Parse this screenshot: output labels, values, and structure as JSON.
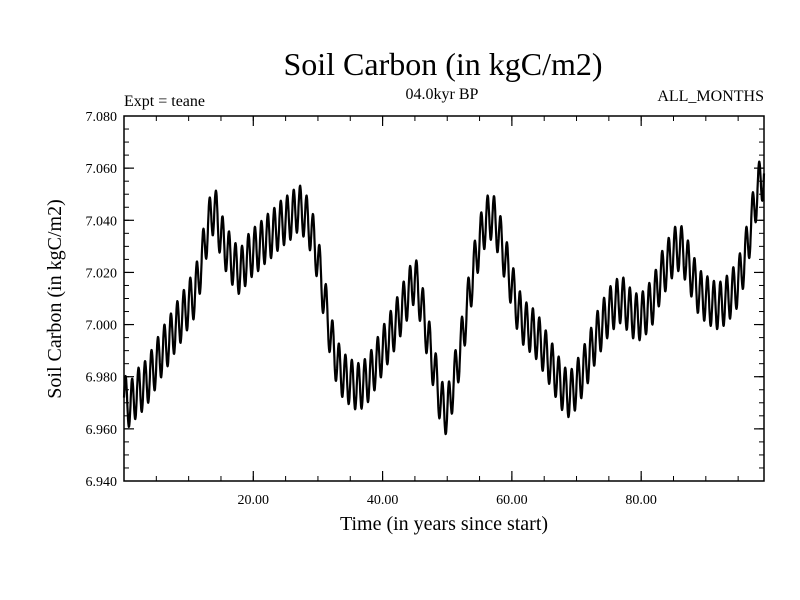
{
  "chart_data": {
    "type": "line",
    "title": "Soil Carbon (in kgC/m2)",
    "subtitle": "04.0kyr BP",
    "experiment_label": "Expt = teane",
    "months_label": "ALL_MONTHS",
    "xlabel": "Time (in years since start)",
    "ylabel": "Soil Carbon (in kgC/m2)",
    "xlim": [
      0,
      99
    ],
    "ylim": [
      6.94,
      7.08
    ],
    "x_ticks": [
      20,
      40,
      60,
      80
    ],
    "x_tick_labels": [
      "20.00",
      "40.00",
      "60.00",
      "80.00"
    ],
    "y_ticks": [
      6.94,
      6.96,
      6.98,
      7.0,
      7.02,
      7.04,
      7.06,
      7.08
    ],
    "y_tick_labels": [
      "6.940",
      "6.960",
      "6.980",
      "7.000",
      "7.020",
      "7.040",
      "7.060",
      "7.080"
    ],
    "x_minor_step": 5,
    "y_minor_step": 0.005,
    "series": [
      {
        "name": "Soil Carbon",
        "color": "#000000",
        "seasonal_amplitude": 0.009,
        "trend_x": [
          0,
          1,
          2,
          3,
          4,
          5,
          6,
          7,
          8,
          9,
          10,
          11,
          12,
          13,
          14,
          15,
          16,
          17,
          18,
          19,
          20,
          21,
          22,
          23,
          24,
          25,
          26,
          27,
          28,
          29,
          30,
          31,
          32,
          33,
          34,
          35,
          36,
          37,
          38,
          39,
          40,
          41,
          42,
          43,
          44,
          45,
          46,
          47,
          48,
          49,
          50,
          51,
          52,
          53,
          54,
          55,
          56,
          57,
          58,
          59,
          60,
          61,
          62,
          63,
          64,
          65,
          66,
          67,
          68,
          69,
          70,
          71,
          72,
          73,
          74,
          75,
          76,
          77,
          78,
          79,
          80,
          81,
          82,
          83,
          84,
          85,
          86,
          87,
          88,
          89,
          90,
          91,
          92,
          93,
          94,
          95,
          96,
          97,
          98,
          99
        ],
        "trend_y": [
          6.972,
          6.969,
          6.974,
          6.976,
          6.98,
          6.985,
          6.99,
          6.994,
          6.999,
          7.003,
          7.008,
          7.012,
          7.024,
          7.038,
          7.045,
          7.034,
          7.028,
          7.023,
          7.02,
          7.025,
          7.028,
          7.03,
          7.033,
          7.035,
          7.038,
          7.04,
          7.042,
          7.045,
          7.042,
          7.036,
          7.025,
          7.01,
          6.995,
          6.985,
          6.98,
          6.978,
          6.976,
          6.977,
          6.98,
          6.985,
          6.99,
          6.995,
          7.0,
          7.006,
          7.012,
          7.018,
          7.008,
          6.995,
          6.983,
          6.97,
          6.966,
          6.978,
          6.99,
          7.005,
          7.02,
          7.032,
          7.04,
          7.042,
          7.035,
          7.025,
          7.015,
          7.005,
          7.0,
          6.998,
          6.995,
          6.99,
          6.985,
          6.98,
          6.975,
          6.973,
          6.977,
          6.982,
          6.988,
          6.995,
          7.0,
          7.005,
          7.008,
          7.01,
          7.006,
          7.003,
          7.003,
          7.006,
          7.01,
          7.018,
          7.023,
          7.028,
          7.03,
          7.025,
          7.018,
          7.012,
          7.01,
          7.008,
          7.007,
          7.009,
          7.012,
          7.016,
          7.025,
          7.038,
          7.052,
          7.058
        ]
      }
    ]
  }
}
